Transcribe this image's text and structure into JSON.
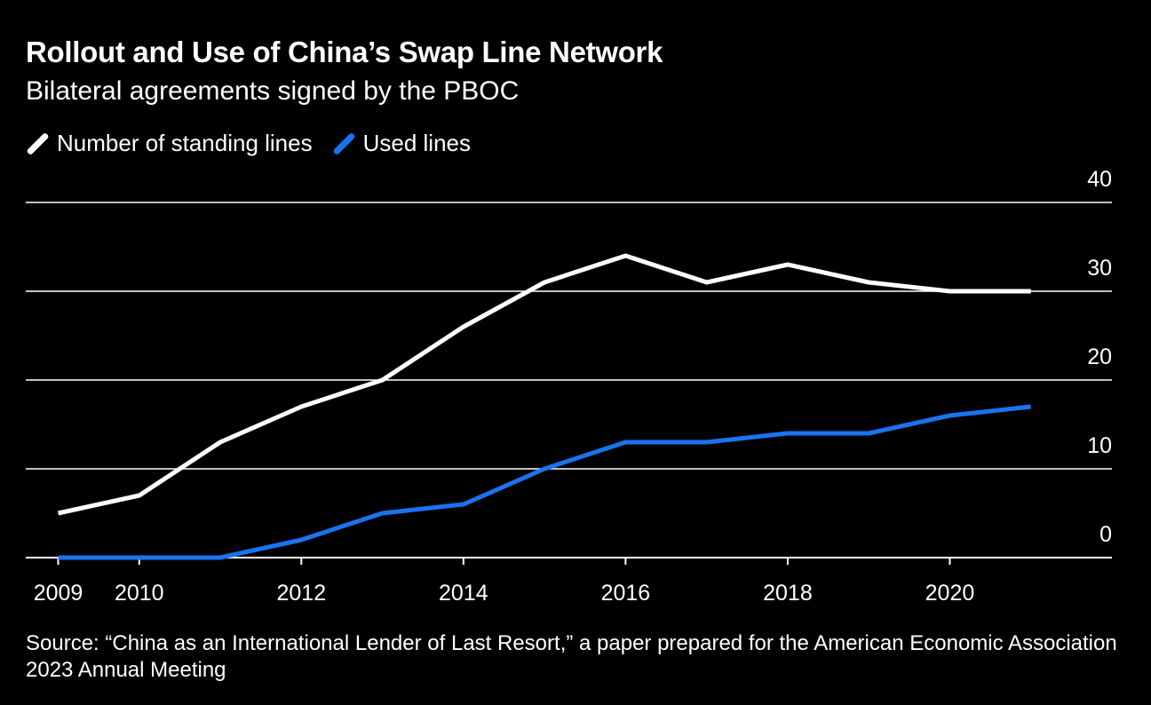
{
  "header": {
    "title": "Rollout and Use of China’s Swap Line Network",
    "subtitle": "Bilateral agreements signed by the PBOC"
  },
  "footer": {
    "source": "Source: “China as an International Lender of Last Resort,” a paper prepared for the American Economic Association 2023 Annual Meeting"
  },
  "chart_data": {
    "type": "line",
    "title": "Rollout and Use of China’s Swap Line Network",
    "subtitle": "Bilateral agreements signed by the PBOC",
    "xlabel": "",
    "ylabel": "",
    "x": [
      2009,
      2010,
      2011,
      2012,
      2013,
      2014,
      2015,
      2016,
      2017,
      2018,
      2019,
      2020,
      2021
    ],
    "x_tick_labels": [
      "2009",
      "2010",
      "2012",
      "2014",
      "2016",
      "2018",
      "2020"
    ],
    "x_ticks": [
      2009,
      2010,
      2012,
      2014,
      2016,
      2018,
      2020
    ],
    "y_ticks": [
      0,
      10,
      20,
      30,
      40
    ],
    "ylim": [
      0,
      40
    ],
    "xlim": [
      2008.6,
      2022.0
    ],
    "grid": true,
    "legend_position": "top-left",
    "series": [
      {
        "name": "Number of standing lines",
        "color": "#ffffff",
        "values": [
          5,
          7,
          13,
          17,
          20,
          26,
          31,
          34,
          31,
          33,
          31,
          30,
          30
        ]
      },
      {
        "name": "Used lines",
        "color": "#1a73f0",
        "values": [
          0,
          0,
          0,
          2,
          5,
          6,
          10,
          13,
          13,
          14,
          14,
          16,
          17
        ]
      }
    ],
    "colors": {
      "background": "#000000",
      "grid": "#ffffff",
      "text": "#ffffff"
    }
  }
}
